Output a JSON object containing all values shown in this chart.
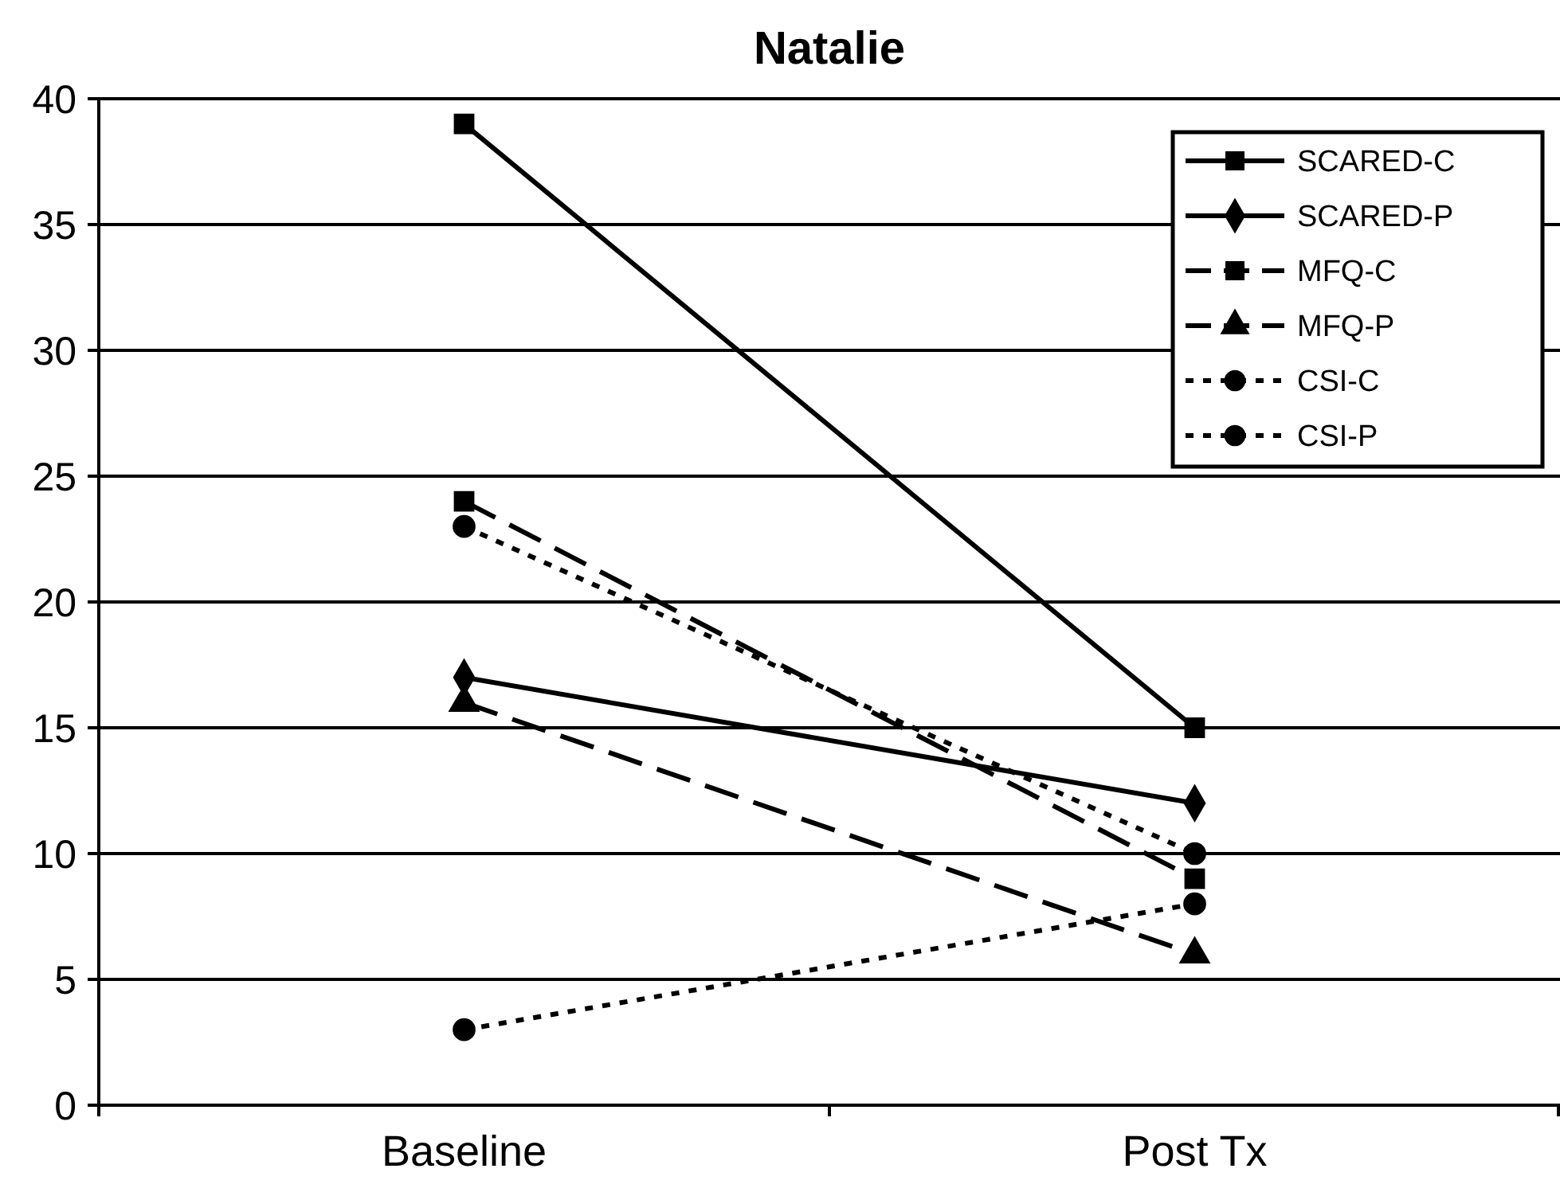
{
  "chart_data": {
    "type": "line",
    "title": "Natalie",
    "categories": [
      "Baseline",
      "Post Tx"
    ],
    "ylim": [
      0,
      40
    ],
    "yticks": [
      0,
      5,
      10,
      15,
      20,
      25,
      30,
      35,
      40
    ],
    "grid": "y",
    "legend": "top right",
    "series": [
      {
        "name": "SCARED-C",
        "color": "#000000",
        "values": [
          39,
          15
        ],
        "marker": "square",
        "line_style": "solid"
      },
      {
        "name": "SCARED-P",
        "color": "#000000",
        "values": [
          17,
          12
        ],
        "marker": "diamond",
        "line_style": "solid"
      },
      {
        "name": "MFQ-C",
        "color": "#000000",
        "values": [
          24,
          9
        ],
        "marker": "square",
        "line_style": "dashed"
      },
      {
        "name": "MFQ-P",
        "color": "#000000",
        "values": [
          16,
          6
        ],
        "marker": "triangle",
        "line_style": "dashed"
      },
      {
        "name": "CSI-C",
        "color": "#000000",
        "values": [
          23,
          10
        ],
        "marker": "circle",
        "line_style": "dotted"
      },
      {
        "name": "CSI-P",
        "color": "#000000",
        "values": [
          3,
          8
        ],
        "marker": "circle",
        "line_style": "dotted"
      }
    ]
  }
}
